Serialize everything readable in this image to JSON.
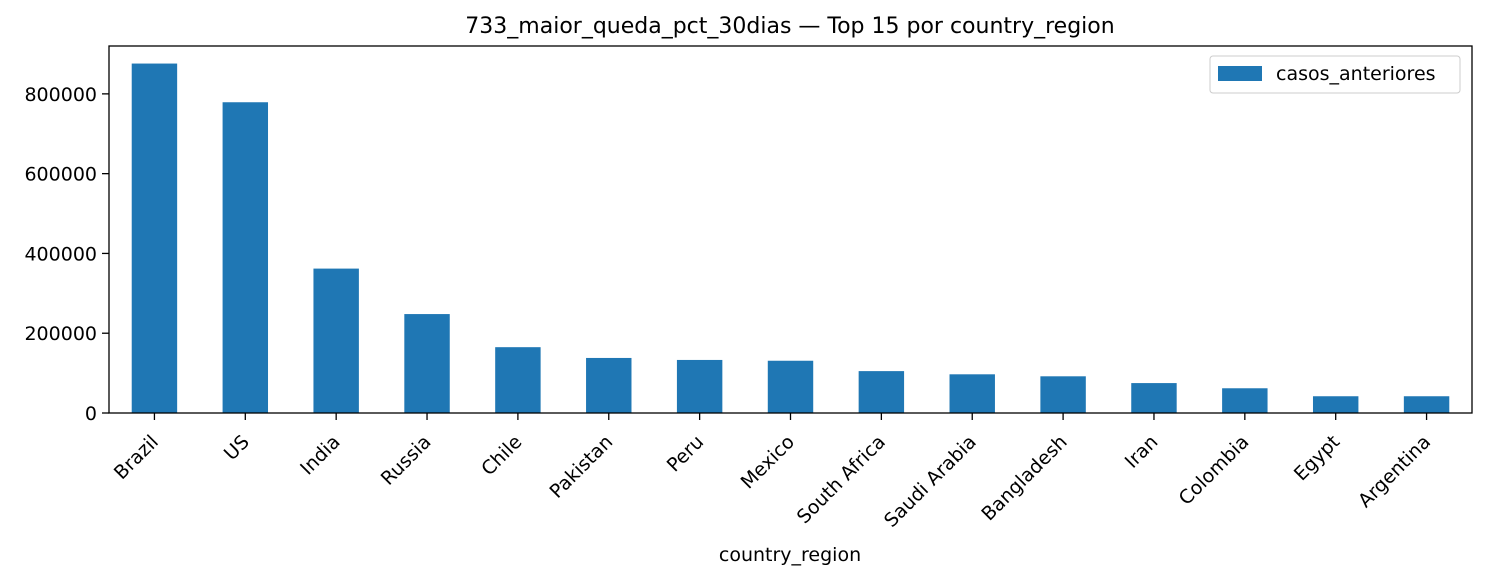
{
  "chart_data": {
    "type": "bar",
    "title": "733_maior_queda_pct_30dias — Top 15 por country_region",
    "xlabel": "country_region",
    "ylabel": "",
    "categories": [
      "Brazil",
      "US",
      "India",
      "Russia",
      "Chile",
      "Pakistan",
      "Peru",
      "Mexico",
      "South Africa",
      "Saudi Arabia",
      "Bangladesh",
      "Iran",
      "Colombia",
      "Egypt",
      "Argentina"
    ],
    "series": [
      {
        "name": "casos_anteriores",
        "color": "#1f77b4",
        "values": [
          876000,
          779000,
          362000,
          248000,
          165000,
          138000,
          133000,
          131000,
          105000,
          97000,
          92000,
          75000,
          62000,
          42000,
          42000
        ]
      }
    ],
    "ylim": [
      0,
      920000
    ],
    "yticks": [
      0,
      200000,
      400000,
      600000,
      800000
    ],
    "ytick_labels": [
      "0",
      "200000",
      "400000",
      "600000",
      "800000"
    ],
    "legend_position": "top-right",
    "grid": false
  }
}
